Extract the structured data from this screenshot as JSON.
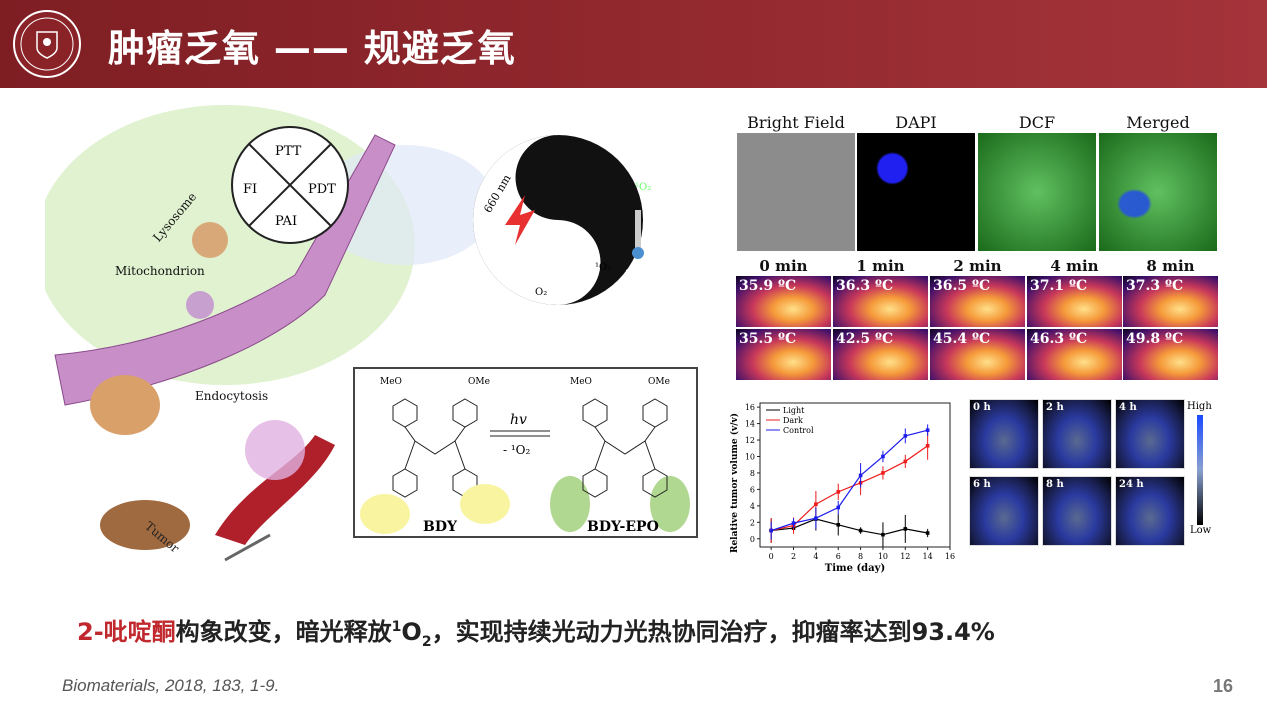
{
  "header": {
    "title": "肿瘤乏氧 —— 规避乏氧",
    "logo_text": "JIANGXI NORMAL UNIVERSITY"
  },
  "scheme": {
    "ptt": "PTT",
    "pdt": "PDT",
    "pai": "PAI",
    "fi": "FI",
    "lysosome": "Lysosome",
    "mitochondrion": "Mitochondrion",
    "endocytosis": "Endocytosis",
    "tumor": "Tumor",
    "laser": "660 nm",
    "singlet": "¹O₂",
    "singlet2": "¹O₂",
    "oxygen": "O₂",
    "temp": "37 °C"
  },
  "chem": {
    "left": "BDY",
    "right": "BDY-EPO",
    "forward": "hv",
    "reverse": "- ¹O₂",
    "substituent": "MeO",
    "substituent2": "OMe"
  },
  "microscopy": {
    "labels": [
      "Bright Field",
      "DAPI",
      "DCF",
      "Merged"
    ],
    "colors": [
      "#8a8a8a",
      "#1010e0",
      "#30a030",
      "#2a7a8a"
    ]
  },
  "thermal": {
    "times": [
      "0 min",
      "1 min",
      "2 min",
      "4 min",
      "8 min"
    ],
    "row1": [
      "35.9 ºC",
      "36.3 ºC",
      "36.5 ºC",
      "37.1 ºC",
      "37.3 ºC"
    ],
    "row2": [
      "35.5 ºC",
      "42.5 ºC",
      "45.4 ºC",
      "46.3 ºC",
      "49.8 ºC"
    ]
  },
  "ultrasound": {
    "labels": [
      "0 h",
      "2 h",
      "4 h",
      "6 h",
      "8 h",
      "24 h"
    ],
    "scale_high": "High",
    "scale_low": "Low"
  },
  "chart_data": {
    "type": "line",
    "xlabel": "Time (day)",
    "ylabel": "Relative tumor volume (v/v)",
    "xlim": [
      -1,
      16
    ],
    "ylim": [
      -1,
      16.5
    ],
    "xticks": [
      0,
      2,
      4,
      6,
      8,
      10,
      12,
      14,
      16
    ],
    "yticks": [
      0,
      2,
      4,
      6,
      8,
      10,
      12,
      14,
      16
    ],
    "x": [
      0,
      2,
      4,
      6,
      8,
      10,
      12,
      14
    ],
    "legend": "top-left",
    "series": [
      {
        "name": "Light",
        "color": "#000000",
        "values": [
          1.0,
          1.3,
          2.4,
          1.7,
          1.0,
          0.5,
          1.2,
          0.7
        ],
        "errors": [
          1.5,
          0.5,
          1.4,
          1.3,
          0.4,
          1.5,
          1.7,
          0.5
        ]
      },
      {
        "name": "Dark",
        "color": "#ee1c1c",
        "values": [
          1.0,
          1.6,
          4.2,
          5.7,
          6.8,
          8.0,
          9.4,
          11.3
        ],
        "errors": [
          1.5,
          1.0,
          1.6,
          1.0,
          1.5,
          0.8,
          0.8,
          1.7
        ]
      },
      {
        "name": "Control",
        "color": "#1c1cee",
        "values": [
          1.0,
          1.9,
          2.5,
          3.8,
          7.7,
          10.0,
          12.5,
          13.2
        ],
        "errors": [
          1.1,
          0.6,
          1.3,
          0.8,
          1.5,
          0.7,
          0.9,
          0.7
        ]
      }
    ]
  },
  "footer": {
    "highlight": "2-吡啶酮",
    "text_a": "构象改变，暗光释放",
    "sup": "1",
    "text_b": "O",
    "sub": "2",
    "text_c": "，实现持续光动力光热协同治疗，抑瘤率达到93.4%",
    "citation": "Biomaterials, 2018, 183, 1-9.",
    "page": "16"
  }
}
